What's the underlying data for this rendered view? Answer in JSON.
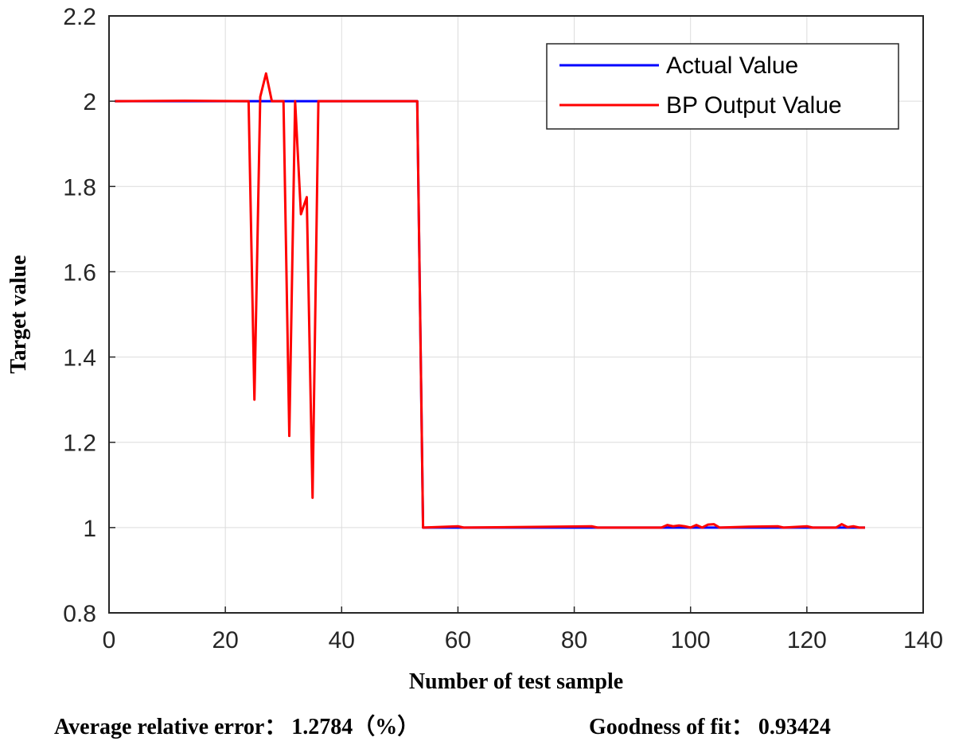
{
  "chart_data": {
    "type": "line",
    "xlabel": "Number of test sample",
    "ylabel": "Target value",
    "xlim": [
      0,
      140
    ],
    "ylim": [
      0.8,
      2.2
    ],
    "xticks": [
      0,
      20,
      40,
      60,
      80,
      100,
      120,
      140
    ],
    "yticks": [
      0.8,
      1,
      1.2,
      1.4,
      1.6,
      1.8,
      2,
      2.2
    ],
    "ytick_labels": [
      "0.8",
      "1",
      "1.2",
      "1.4",
      "1.6",
      "1.8",
      "2",
      "2.2"
    ],
    "grid": true,
    "legend_position": "top-right",
    "series": [
      {
        "name": "Actual Value",
        "color": "#0000ff",
        "points": [
          [
            1,
            2
          ],
          [
            53,
            2
          ],
          [
            54,
            1
          ],
          [
            130,
            1
          ]
        ]
      },
      {
        "name": "BP Output Value",
        "color": "#ff0000",
        "points": [
          [
            1,
            2
          ],
          [
            13,
            2.001
          ],
          [
            24,
            2
          ],
          [
            25,
            1.3
          ],
          [
            26,
            2.01
          ],
          [
            27,
            2.065
          ],
          [
            28,
            2
          ],
          [
            30,
            2
          ],
          [
            31,
            1.215
          ],
          [
            32,
            2
          ],
          [
            33,
            1.735
          ],
          [
            34,
            1.775
          ],
          [
            35,
            1.07
          ],
          [
            36,
            2
          ],
          [
            53,
            2
          ],
          [
            54,
            1
          ],
          [
            60,
            1.003
          ],
          [
            61,
            1
          ],
          [
            83,
            1.003
          ],
          [
            84,
            1
          ],
          [
            95,
            1
          ],
          [
            96,
            1.006
          ],
          [
            97,
            1.003
          ],
          [
            98,
            1.005
          ],
          [
            99,
            1.003
          ],
          [
            100,
            1
          ],
          [
            101,
            1.006
          ],
          [
            102,
            1
          ],
          [
            103,
            1.007
          ],
          [
            104,
            1.008
          ],
          [
            105,
            1
          ],
          [
            110,
            1.002
          ],
          [
            115,
            1.003
          ],
          [
            116,
            1
          ],
          [
            120,
            1.003
          ],
          [
            121,
            1
          ],
          [
            125,
            1
          ],
          [
            126,
            1.008
          ],
          [
            127,
            1.001
          ],
          [
            128,
            1.003
          ],
          [
            129,
            1
          ],
          [
            130,
            1
          ]
        ]
      }
    ]
  },
  "metrics": {
    "average_relative_error_label": "Average relative error：",
    "average_relative_error_value": "1.2784（%）",
    "goodness_of_fit_label": "Goodness of fit：",
    "goodness_of_fit_value": "0.93424"
  }
}
